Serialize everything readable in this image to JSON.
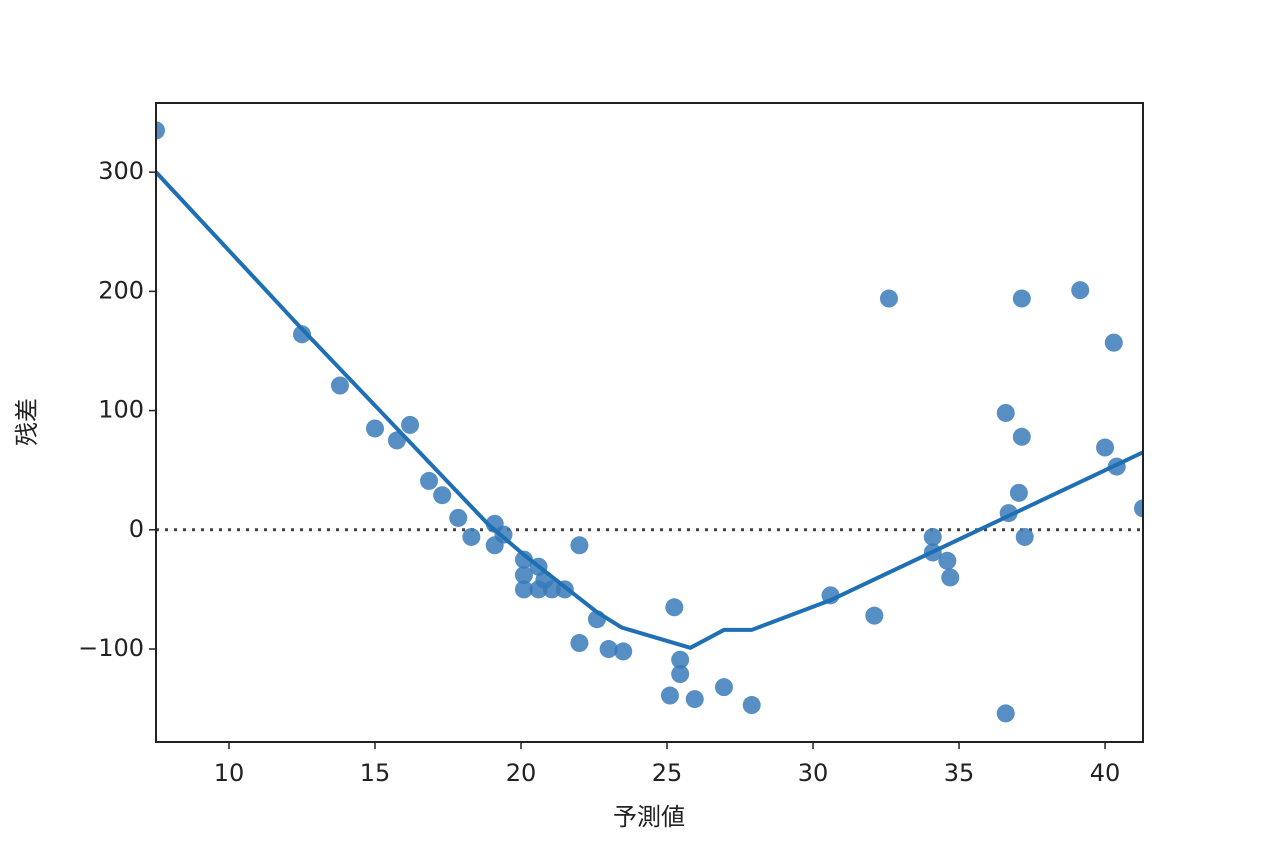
{
  "chart_data": {
    "type": "scatter",
    "xlabel": "予測値",
    "ylabel": "残差",
    "xlim": [
      7.5,
      41.3
    ],
    "ylim": [
      -178,
      358
    ],
    "xticks": [
      10,
      15,
      20,
      25,
      30,
      35,
      40
    ],
    "yticks": [
      {
        "value": -100,
        "label": "−100"
      },
      0,
      100,
      200,
      300
    ],
    "reference_line": 0,
    "series": [
      {
        "color": "#3a7ab8",
        "x": [
          7.5,
          12.5,
          13.8,
          15.0,
          15.75,
          16.2,
          16.85,
          17.3,
          17.85,
          18.3,
          19.1,
          19.1,
          19.4,
          20.1,
          20.1,
          20.1,
          20.6,
          20.6,
          21.06,
          21.5,
          20.8,
          22.0,
          22.0,
          22.6,
          23.0,
          23.5,
          25.1,
          25.25,
          25.45,
          25.45,
          25.95,
          26.95,
          27.9,
          30.6,
          32.1,
          32.6,
          34.1,
          34.1,
          34.6,
          34.7,
          36.6,
          36.6,
          36.7,
          37.05,
          37.15,
          37.15,
          37.25,
          39.15,
          40.0,
          40.3,
          40.4,
          41.3
        ],
        "values": [
          335,
          164,
          121,
          85,
          75,
          88,
          41,
          29,
          10,
          -6,
          5,
          -13,
          -4,
          -25,
          -38,
          -50,
          -31,
          -50,
          -50,
          -50,
          -42,
          -13,
          -95,
          -75,
          -100,
          -102,
          -139,
          -65,
          -109,
          -121,
          -142,
          -132,
          -147,
          -55,
          -72,
          194,
          -6,
          -19,
          -26,
          -40,
          98,
          -154,
          14,
          31,
          194,
          78,
          -6,
          201,
          69,
          157,
          53,
          18
        ]
      }
    ],
    "trend": {
      "color": "#1f6fb4",
      "x": [
        7.5,
        12.4,
        18.9,
        20.1,
        22.6,
        23.45,
        25.8,
        26.95,
        27.9,
        30.6,
        41.3
      ],
      "values": [
        300,
        171,
        4,
        -21,
        -69,
        -82,
        -99,
        -84,
        -84,
        -59,
        65
      ]
    }
  }
}
